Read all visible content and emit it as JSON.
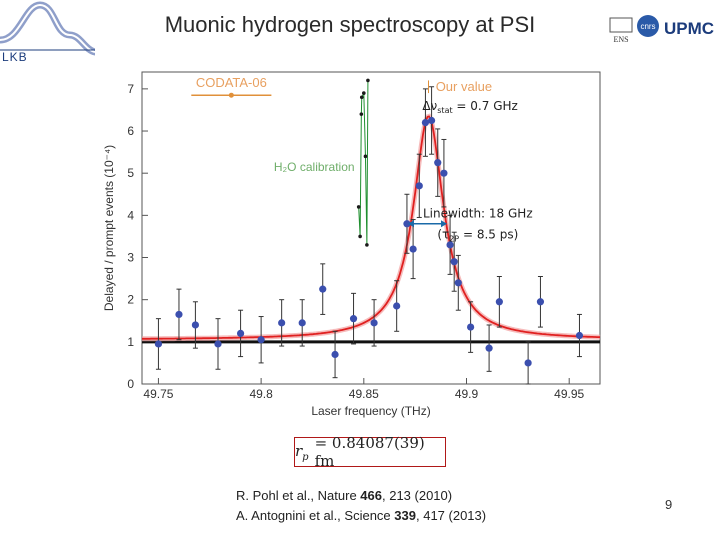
{
  "slide": {
    "title": "Muonic hydrogen spectroscopy at PSI",
    "lkb_logo_text": "LKB",
    "institution_logos": [
      "ENS",
      "CNRS",
      "UPMC"
    ],
    "page_number": "9"
  },
  "formula": {
    "symbol": "r",
    "subscript": "p",
    "value": "= 0.84087(39) fm"
  },
  "references": [
    {
      "authors": "R. Pohl et al., Nature ",
      "volume": "466",
      "rest": ", 213 (2010)"
    },
    {
      "authors": "A. Antognini et al., Science ",
      "volume": "339",
      "rest": ", 417 (2013)"
    }
  ],
  "chart_data": {
    "type": "scatter",
    "xlabel": "Laser frequency (THz)",
    "ylabel": "Delayed / prompt events (10⁻⁴)",
    "xlim": [
      49.742,
      49.965
    ],
    "ylim": [
      0,
      7.4
    ],
    "xticks": [
      "49.75",
      "49.8",
      "49.85",
      "49.9",
      "49.95"
    ],
    "xtick_values": [
      49.75,
      49.8,
      49.85,
      49.9,
      49.95
    ],
    "yticks": [
      "0",
      "1",
      "2",
      "3",
      "4",
      "5",
      "6",
      "7"
    ],
    "series": [
      {
        "name": "Our value",
        "color": "#3b4fae",
        "points": [
          {
            "x": 49.75,
            "y": 0.95,
            "err": 0.6
          },
          {
            "x": 49.76,
            "y": 1.65,
            "err": 0.6
          },
          {
            "x": 49.768,
            "y": 1.4,
            "err": 0.55
          },
          {
            "x": 49.779,
            "y": 0.95,
            "err": 0.6
          },
          {
            "x": 49.79,
            "y": 1.2,
            "err": 0.55
          },
          {
            "x": 49.8,
            "y": 1.05,
            "err": 0.55
          },
          {
            "x": 49.81,
            "y": 1.45,
            "err": 0.55
          },
          {
            "x": 49.82,
            "y": 1.45,
            "err": 0.55
          },
          {
            "x": 49.83,
            "y": 2.25,
            "err": 0.6
          },
          {
            "x": 49.836,
            "y": 0.7,
            "err": 0.55
          },
          {
            "x": 49.845,
            "y": 1.55,
            "err": 0.6
          },
          {
            "x": 49.855,
            "y": 1.45,
            "err": 0.55
          },
          {
            "x": 49.866,
            "y": 1.85,
            "err": 0.6
          },
          {
            "x": 49.871,
            "y": 3.8,
            "err": 0.7
          },
          {
            "x": 49.874,
            "y": 3.2,
            "err": 0.7
          },
          {
            "x": 49.877,
            "y": 4.7,
            "err": 0.75
          },
          {
            "x": 49.88,
            "y": 6.2,
            "err": 0.8
          },
          {
            "x": 49.883,
            "y": 6.25,
            "err": 0.8
          },
          {
            "x": 49.886,
            "y": 5.25,
            "err": 0.8
          },
          {
            "x": 49.889,
            "y": 5.0,
            "err": 0.8
          },
          {
            "x": 49.892,
            "y": 3.3,
            "err": 0.7
          },
          {
            "x": 49.894,
            "y": 2.9,
            "err": 0.7
          },
          {
            "x": 49.896,
            "y": 2.4,
            "err": 0.65
          },
          {
            "x": 49.902,
            "y": 1.35,
            "err": 0.6
          },
          {
            "x": 49.911,
            "y": 0.85,
            "err": 0.55
          },
          {
            "x": 49.916,
            "y": 1.95,
            "err": 0.6
          },
          {
            "x": 49.93,
            "y": 0.5,
            "err": 0.5
          },
          {
            "x": 49.936,
            "y": 1.95,
            "err": 0.6
          },
          {
            "x": 49.955,
            "y": 1.15,
            "err": 0.5
          }
        ]
      },
      {
        "name": "Lorentzian fit",
        "color": "#e02020",
        "center": 49.8815,
        "fwhm": 0.018,
        "amplitude": 5.3,
        "baseline": 1.05
      },
      {
        "name": "H₂O calibration",
        "color": "#1f8f2f",
        "points": [
          {
            "x": 49.8475,
            "y": 4.2
          },
          {
            "x": 49.8482,
            "y": 3.5
          },
          {
            "x": 49.8488,
            "y": 6.4
          },
          {
            "x": 49.849,
            "y": 6.8
          },
          {
            "x": 49.85,
            "y": 6.9
          },
          {
            "x": 49.8508,
            "y": 5.4
          },
          {
            "x": 49.8515,
            "y": 3.3
          },
          {
            "x": 49.852,
            "y": 7.2
          }
        ]
      },
      {
        "name": "CODATA-06",
        "color": "#e0903a",
        "x": 49.7855,
        "y": 6.85,
        "xerr": 0.0195
      }
    ],
    "baseline_level": 1.0,
    "annotations": [
      {
        "name": "stat-error",
        "text": "Δν_stat = 0.7 GHz"
      },
      {
        "name": "linewidth",
        "text": "Linewidth: 18 GHz"
      },
      {
        "name": "lifetime",
        "text": "(τ_2P = 8.5 ps)"
      }
    ],
    "linewidth_arrow": {
      "x1": 49.8715,
      "x2": 49.8905,
      "y": 3.8
    }
  }
}
